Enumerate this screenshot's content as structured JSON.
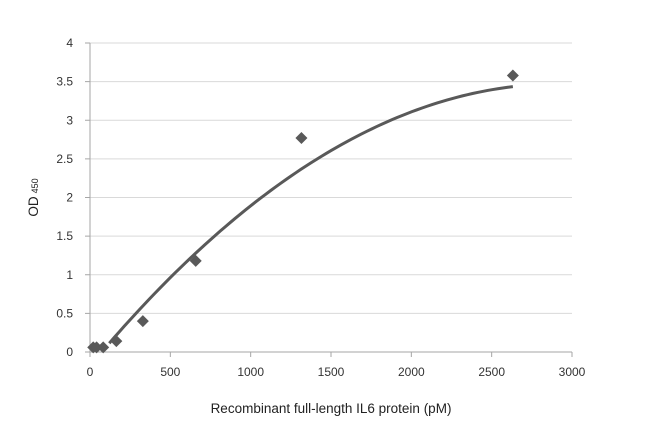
{
  "chart_data": {
    "type": "scatter",
    "title": "",
    "xlabel": "Recombinant full-length IL6 protein (pM)",
    "ylabel": "OD",
    "ylabel_subscript": "450",
    "xlim": [
      0,
      3000
    ],
    "ylim": [
      0,
      4
    ],
    "xticks": [
      0,
      500,
      1000,
      1500,
      2000,
      2500,
      3000
    ],
    "yticks": [
      0,
      0.5,
      1,
      1.5,
      2,
      2.5,
      3,
      3.5,
      4
    ],
    "ytick_labels": [
      "0",
      "0.5",
      "1",
      "1.5",
      "2",
      "2.5",
      "3",
      "3.5",
      "4"
    ],
    "grid": "horizontal",
    "legend": "none",
    "series": [
      {
        "marker": "diamond",
        "color": "#595959",
        "x": [
          20,
          41,
          82,
          164,
          329,
          658,
          1316,
          2632
        ],
        "y": [
          0.06,
          0.06,
          0.06,
          0.14,
          0.4,
          1.18,
          2.77,
          3.58
        ]
      }
    ],
    "trendline": {
      "kind": "polynomial-2",
      "color": "#595959",
      "x_range": [
        120,
        2632
      ],
      "coefficients": [
        -4.28e-07,
        0.0025,
        -0.18
      ]
    }
  }
}
